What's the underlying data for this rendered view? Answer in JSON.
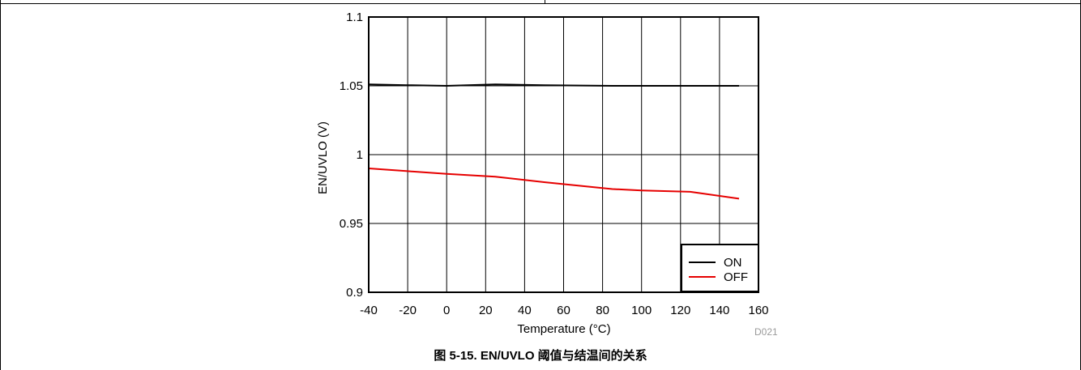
{
  "caption": "图 5-15. EN/UVLO 阈值与结温间的关系",
  "chart_data": {
    "type": "line",
    "xlabel": "Temperature (°C)",
    "ylabel": "EN/UVLO (V)",
    "xlim": [
      -40,
      160
    ],
    "ylim": [
      0.9,
      1.1
    ],
    "xticks": [
      -40,
      -20,
      0,
      20,
      40,
      60,
      80,
      100,
      120,
      140,
      160
    ],
    "yticks": [
      0.9,
      0.95,
      1,
      1.05,
      1.1
    ],
    "ytick_labels": [
      "0.9",
      "0.95",
      "1",
      "1.05",
      "1.1"
    ],
    "grid": true,
    "legend_position": "bottom-right",
    "series": [
      {
        "name": "ON",
        "color": "#000000",
        "x": [
          -40,
          -20,
          0,
          25,
          50,
          85,
          100,
          125,
          150
        ],
        "y": [
          1.051,
          1.0505,
          1.05,
          1.051,
          1.0505,
          1.05,
          1.05,
          1.05,
          1.05
        ]
      },
      {
        "name": "OFF",
        "color": "#e60000",
        "x": [
          -40,
          -20,
          0,
          25,
          50,
          85,
          100,
          125,
          150
        ],
        "y": [
          0.99,
          0.988,
          0.986,
          0.984,
          0.98,
          0.975,
          0.974,
          0.973,
          0.968
        ]
      }
    ],
    "annotation": "D021"
  }
}
